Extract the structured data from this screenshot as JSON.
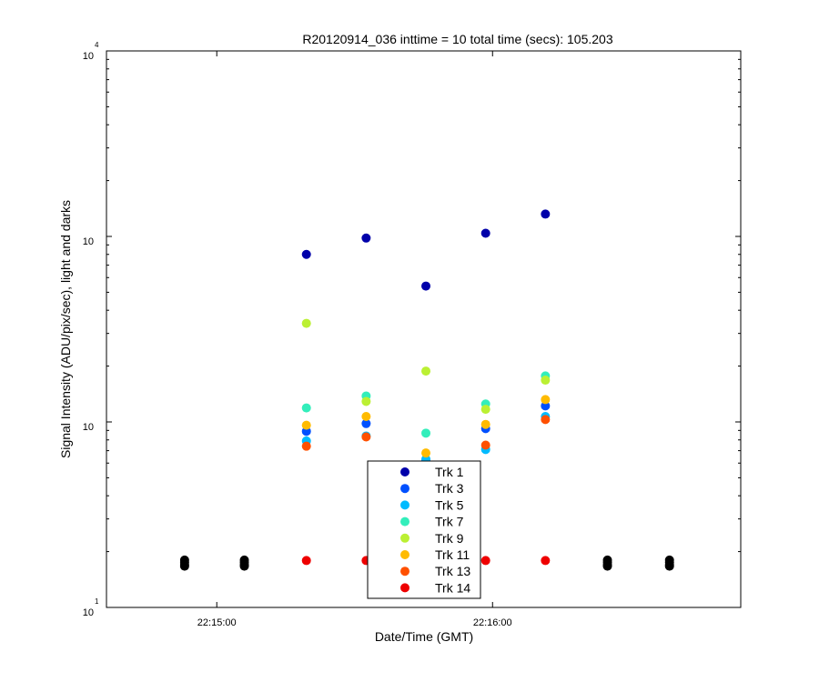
{
  "chart_data": {
    "type": "scatter",
    "title": "R20120914_036 inttime = 10 total time (secs): 105.203",
    "xlabel": "Date/Time (GMT)",
    "ylabel": "Signal Intensity (ADU/pix/sec), light and darks",
    "x_ticks": [
      {
        "value": 60,
        "label": "22:15:00"
      },
      {
        "value": 120,
        "label": "22:16:00"
      }
    ],
    "xlim": [
      36,
      174
    ],
    "y_scale": "log",
    "ylim": [
      10,
      10000
    ],
    "y_ticks": [
      {
        "value": 10,
        "base": "10",
        "exp": "1"
      },
      {
        "value": 100,
        "base": "10",
        "exp": ""
      },
      {
        "value": 1000,
        "base": "10",
        "exp": ""
      },
      {
        "value": 10000,
        "base": "10",
        "exp": "4"
      }
    ],
    "legend_position": "bottom-center",
    "series": [
      {
        "name": "Trk 1",
        "color": "#0000aa",
        "points": [
          [
            79.5,
            800
          ],
          [
            92.5,
            980
          ],
          [
            105.5,
            540
          ],
          [
            118.5,
            1040
          ],
          [
            131.5,
            1320
          ]
        ]
      },
      {
        "name": "Trk 3",
        "color": "#0050ff",
        "points": [
          [
            79.5,
            89
          ],
          [
            92.5,
            98
          ],
          [
            105.5,
            62
          ],
          [
            118.5,
            92
          ],
          [
            131.5,
            122
          ]
        ]
      },
      {
        "name": "Trk 5",
        "color": "#00bbff",
        "points": [
          [
            79.5,
            79
          ],
          [
            92.5,
            84
          ],
          [
            105.5,
            63
          ],
          [
            118.5,
            71
          ],
          [
            131.5,
            107
          ]
        ]
      },
      {
        "name": "Trk 7",
        "color": "#33eebb",
        "points": [
          [
            79.5,
            119
          ],
          [
            92.5,
            138
          ],
          [
            105.5,
            87
          ],
          [
            118.5,
            125
          ],
          [
            131.5,
            177
          ]
        ]
      },
      {
        "name": "Trk 9",
        "color": "#bbf033",
        "points": [
          [
            79.5,
            340
          ],
          [
            92.5,
            129
          ],
          [
            105.5,
            188
          ],
          [
            118.5,
            117
          ],
          [
            131.5,
            168
          ]
        ]
      },
      {
        "name": "Trk 11",
        "color": "#ffbb00",
        "points": [
          [
            79.5,
            96
          ],
          [
            92.5,
            107
          ],
          [
            105.5,
            68
          ],
          [
            118.5,
            97
          ],
          [
            131.5,
            132
          ]
        ]
      },
      {
        "name": "Trk 13",
        "color": "#ff5000",
        "points": [
          [
            79.5,
            74
          ],
          [
            92.5,
            83
          ],
          [
            118.5,
            75
          ],
          [
            131.5,
            103
          ]
        ]
      },
      {
        "name": "Trk 14",
        "color": "#ee0000",
        "points": [
          [
            79.5,
            17.9
          ],
          [
            92.5,
            17.9
          ],
          [
            105.5,
            17.9
          ],
          [
            118.5,
            17.9
          ],
          [
            131.5,
            17.9
          ]
        ]
      }
    ],
    "darks": {
      "color": "#000000",
      "points": [
        [
          53,
          18
        ],
        [
          53,
          17.5
        ],
        [
          53,
          17
        ],
        [
          53,
          16.7
        ],
        [
          66,
          18
        ],
        [
          66,
          17.5
        ],
        [
          66,
          17
        ],
        [
          66,
          16.7
        ],
        [
          145,
          18
        ],
        [
          145,
          17.5
        ],
        [
          145,
          17
        ],
        [
          145,
          16.7
        ],
        [
          158.5,
          18
        ],
        [
          158.5,
          17.5
        ],
        [
          158.5,
          17
        ],
        [
          158.5,
          16.7
        ]
      ]
    }
  }
}
